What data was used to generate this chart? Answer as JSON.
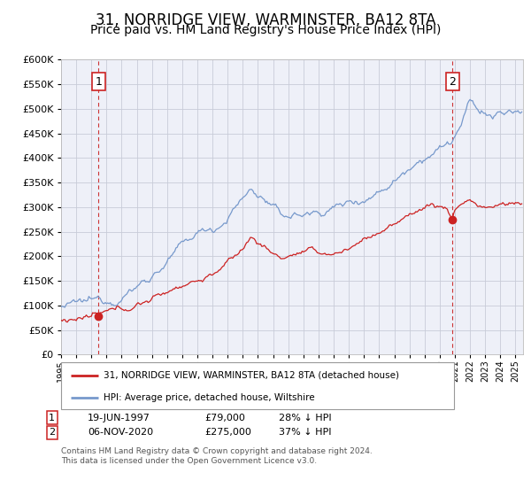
{
  "title": "31, NORRIDGE VIEW, WARMINSTER, BA12 8TA",
  "subtitle": "Price paid vs. HM Land Registry's House Price Index (HPI)",
  "title_fontsize": 12,
  "subtitle_fontsize": 10,
  "background_color": "#ffffff",
  "plot_bg_color": "#eef0f8",
  "grid_color": "#c8ccd8",
  "ylim": [
    0,
    600000
  ],
  "yticks": [
    0,
    50000,
    100000,
    150000,
    200000,
    250000,
    300000,
    350000,
    400000,
    450000,
    500000,
    550000,
    600000
  ],
  "hpi_color": "#7799cc",
  "price_color": "#cc2222",
  "marker_color": "#cc2222",
  "dashed_line_color": "#cc3333",
  "transaction1_date": 1997.47,
  "transaction1_price": 79000,
  "transaction1_hpi": 109000,
  "transaction1_label": "1",
  "transaction2_date": 2020.84,
  "transaction2_price": 275000,
  "transaction2_hpi": 435000,
  "transaction2_label": "2",
  "legend_line1": "31, NORRIDGE VIEW, WARMINSTER, BA12 8TA (detached house)",
  "legend_line2": "HPI: Average price, detached house, Wiltshire",
  "table_row1": [
    "1",
    "19-JUN-1997",
    "£79,000",
    "28% ↓ HPI"
  ],
  "table_row2": [
    "2",
    "06-NOV-2020",
    "£275,000",
    "37% ↓ HPI"
  ],
  "footer": "Contains HM Land Registry data © Crown copyright and database right 2024.\nThis data is licensed under the Open Government Licence v3.0.",
  "xstart": 1995.0,
  "xend": 2025.5
}
